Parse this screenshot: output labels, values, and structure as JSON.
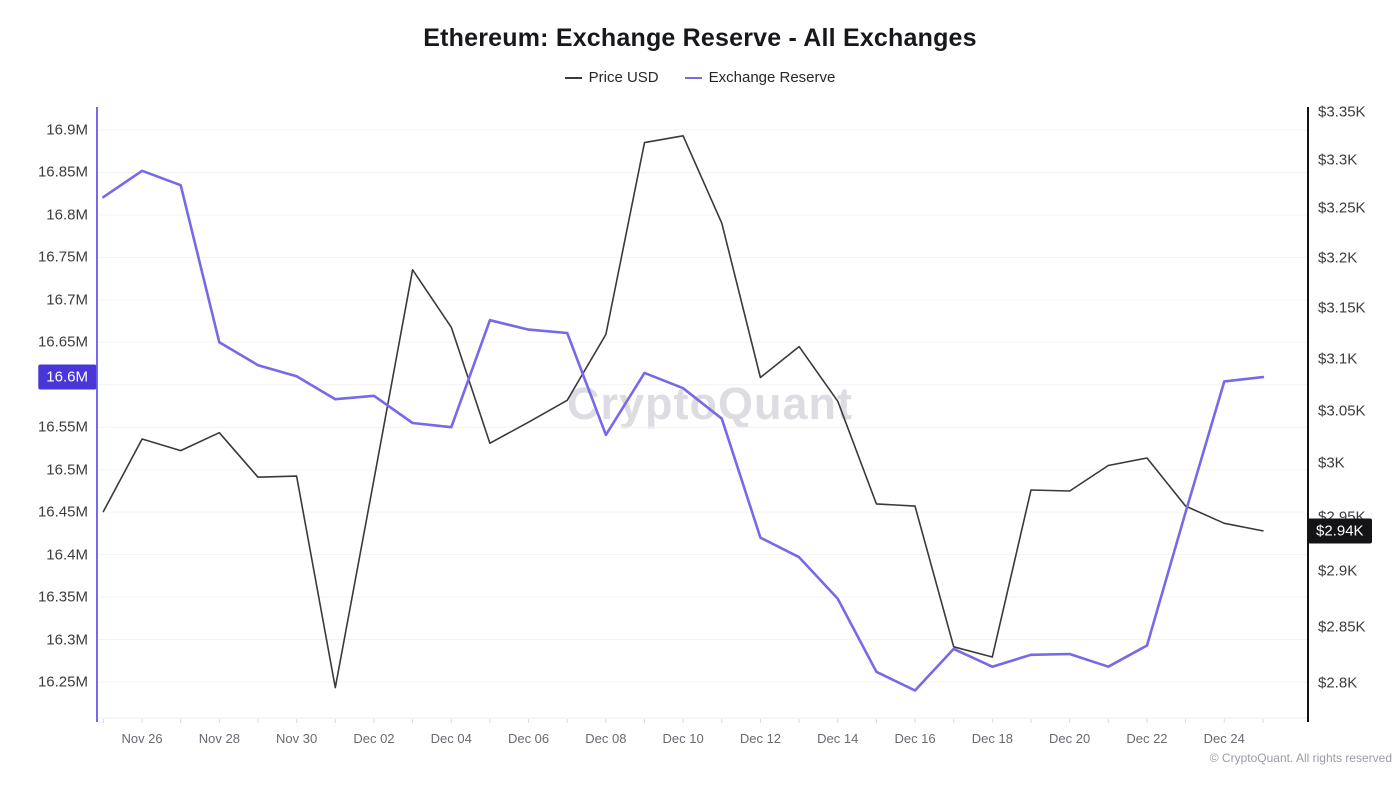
{
  "header": {
    "title": "Ethereum: Exchange Reserve - All Exchanges"
  },
  "legend": [
    {
      "label": "Price USD",
      "color": "#3a3a3c"
    },
    {
      "label": "Exchange Reserve",
      "color": "#7669ea"
    }
  ],
  "watermark": "CryptoQuant",
  "footer": {
    "copyright": "© CryptoQuant. All rights reserved"
  },
  "chart_data": {
    "type": "line",
    "title": "Ethereum: Exchange Reserve - All Exchanges",
    "x": [
      "Nov 25",
      "Nov 26",
      "Nov 27",
      "Nov 28",
      "Nov 29",
      "Nov 30",
      "Dec 01",
      "Dec 02",
      "Dec 03",
      "Dec 04",
      "Dec 05",
      "Dec 06",
      "Dec 07",
      "Dec 08",
      "Dec 09",
      "Dec 10",
      "Dec 11",
      "Dec 12",
      "Dec 13",
      "Dec 14",
      "Dec 15",
      "Dec 16",
      "Dec 17",
      "Dec 18",
      "Dec 19",
      "Dec 20",
      "Dec 21",
      "Dec 22",
      "Dec 23",
      "Dec 24",
      "Dec 25"
    ],
    "x_tick_indices": [
      1,
      3,
      5,
      7,
      9,
      11,
      13,
      15,
      17,
      19,
      21,
      23,
      25,
      27,
      29
    ],
    "x_tick_labels": [
      "Nov 26",
      "Nov 28",
      "Nov 30",
      "Dec 02",
      "Dec 04",
      "Dec 06",
      "Dec 08",
      "Dec 10",
      "Dec 12",
      "Dec 14",
      "Dec 16",
      "Dec 18",
      "Dec 20",
      "Dec 22",
      "Dec 24"
    ],
    "series": [
      {
        "name": "Price USD",
        "axis": "right",
        "color": "#3a3a3c",
        "width": 1.6,
        "values": [
          2955,
          3023,
          3012,
          3029,
          2987,
          2988,
          2796,
          2985,
          3188,
          3131,
          3019,
          3039,
          3060,
          3124,
          3318,
          3325,
          3235,
          3082,
          3112,
          3059,
          2962,
          2960,
          2832,
          2823,
          2975,
          2974,
          2998,
          3005,
          2960,
          2944,
          2937
        ]
      },
      {
        "name": "Exchange Reserve",
        "axis": "left",
        "color": "#7669ea",
        "width": 2.6,
        "values": [
          16.821,
          16.852,
          16.835,
          16.65,
          16.623,
          16.61,
          16.583,
          16.587,
          16.555,
          16.55,
          16.676,
          16.665,
          16.661,
          16.541,
          16.614,
          16.596,
          16.56,
          16.42,
          16.397,
          16.348,
          16.262,
          16.24,
          16.289,
          16.268,
          16.282,
          16.283,
          16.268,
          16.293,
          16.45,
          16.604,
          16.609
        ]
      }
    ],
    "left_axis": {
      "name": "Exchange Reserve (ETH)",
      "scale": "linear",
      "axis_color": "#7669ea",
      "tick_labels": [
        "16.9M",
        "16.85M",
        "16.8M",
        "16.75M",
        "16.7M",
        "16.65M",
        "16.6M",
        "16.55M",
        "16.5M",
        "16.45M",
        "16.4M",
        "16.35M",
        "16.3M",
        "16.25M"
      ],
      "tick_values": [
        16.9,
        16.85,
        16.8,
        16.75,
        16.7,
        16.65,
        16.6,
        16.55,
        16.5,
        16.45,
        16.4,
        16.35,
        16.3,
        16.25
      ]
    },
    "right_axis": {
      "name": "Price USD",
      "scale": "log",
      "axis_color": "#141417",
      "tick_labels": [
        "$3.35K",
        "$3.3K",
        "$3.25K",
        "$3.2K",
        "$3.15K",
        "$3.1K",
        "$3.05K",
        "$3K",
        "$2.95K",
        "$2.9K",
        "$2.85K",
        "$2.8K"
      ],
      "tick_values": [
        3350,
        3300,
        3250,
        3200,
        3150,
        3100,
        3050,
        3000,
        2950,
        2900,
        2850,
        2800
      ]
    },
    "current_value_tags": {
      "left": {
        "label": "16.6M",
        "value": 16.609,
        "bg": "#4936d8"
      },
      "right": {
        "label": "$2.94K",
        "value": 2937,
        "bg": "#141417"
      }
    },
    "grid": true,
    "legend_position": "top"
  }
}
